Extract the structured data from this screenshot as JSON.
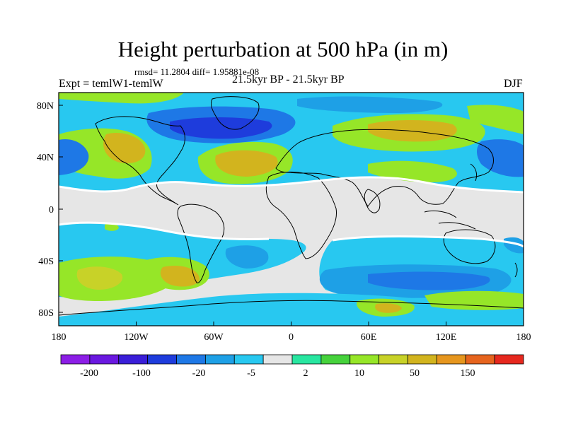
{
  "title": "Height perturbation at 500 hPa (in m)",
  "stats_line": "rmsd= 11.2804 diff= 1.95881e-08",
  "expt_label": "Expt = temlW1-temlW",
  "period_label": "21.5kyr BP - 21.5kyr BP",
  "season_label": "DJF",
  "lat_ticks": [
    "80N",
    "40N",
    "0",
    "40S",
    "80S"
  ],
  "lon_ticks": [
    "180",
    "120W",
    "60W",
    "0",
    "60E",
    "120E",
    "180"
  ],
  "colorbar": {
    "colors": [
      "#8c1ee6",
      "#6a18e0",
      "#3a1ed8",
      "#1e3cdc",
      "#1e78e6",
      "#1ea0e6",
      "#28c8f0",
      "#e6e6e6",
      "#28e6a0",
      "#46d23c",
      "#96e628",
      "#c8d228",
      "#d2b41e",
      "#e6961e",
      "#e6641e",
      "#e6281e"
    ],
    "labels": [
      "-200",
      "-100",
      "-20",
      "-5",
      "2",
      "10",
      "50",
      "150"
    ]
  }
}
